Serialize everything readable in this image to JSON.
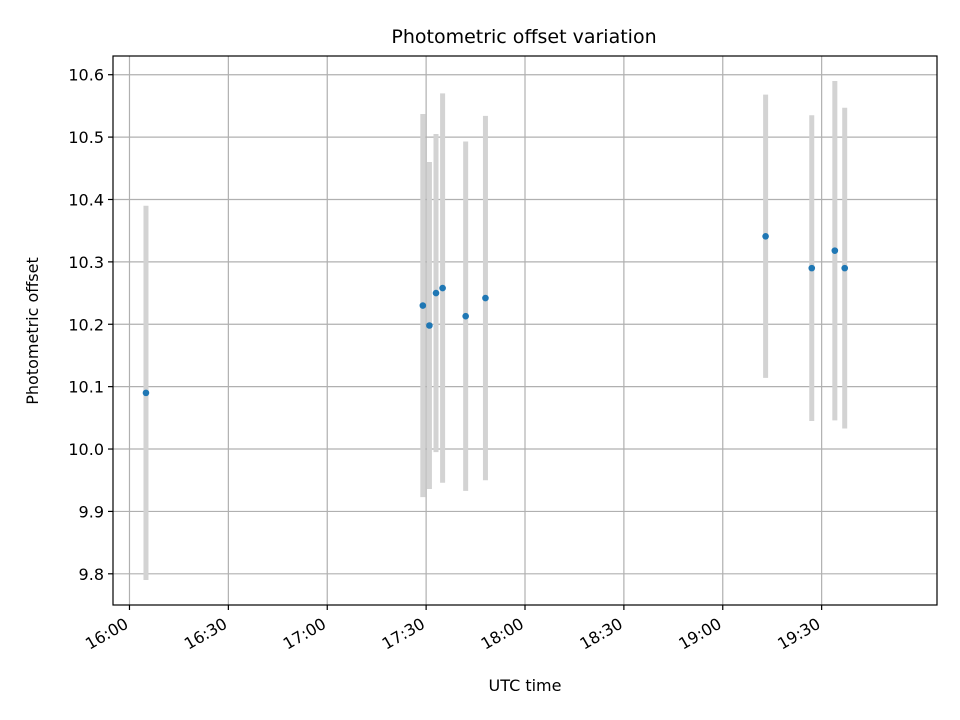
{
  "chart_data": {
    "type": "scatter",
    "title": "Photometric offset variation",
    "xlabel": "UTC time",
    "ylabel": "Photometric offset",
    "x_axis_kind": "time",
    "xlim": [
      "15:55",
      "20:05"
    ],
    "ylim": [
      9.75,
      10.63
    ],
    "grid": true,
    "x_ticks": [
      "16:00",
      "16:30",
      "17:00",
      "17:30",
      "18:00",
      "18:30",
      "19:00",
      "19:30"
    ],
    "y_ticks": [
      "9.8",
      "9.9",
      "10.0",
      "10.1",
      "10.2",
      "10.3",
      "10.4",
      "10.5",
      "10.6"
    ],
    "colors": {
      "point": "#1f77b4",
      "errorbar": "#d3d3d3",
      "grid": "#b0b0b0"
    },
    "series": [
      {
        "points": [
          {
            "x": "16:05",
            "y": 10.09,
            "err": 0.3
          },
          {
            "x": "17:29",
            "y": 10.23,
            "err": 0.307
          },
          {
            "x": "17:31",
            "y": 10.198,
            "err": 0.262
          },
          {
            "x": "17:33",
            "y": 10.25,
            "err": 0.255
          },
          {
            "x": "17:35",
            "y": 10.258,
            "err": 0.312
          },
          {
            "x": "17:42",
            "y": 10.213,
            "err": 0.28
          },
          {
            "x": "17:48",
            "y": 10.242,
            "err": 0.292
          },
          {
            "x": "19:13",
            "y": 10.341,
            "err": 0.227
          },
          {
            "x": "19:27",
            "y": 10.29,
            "err": 0.245
          },
          {
            "x": "19:34",
            "y": 10.318,
            "err": 0.272
          },
          {
            "x": "19:37",
            "y": 10.29,
            "err": 0.257
          }
        ]
      }
    ]
  }
}
